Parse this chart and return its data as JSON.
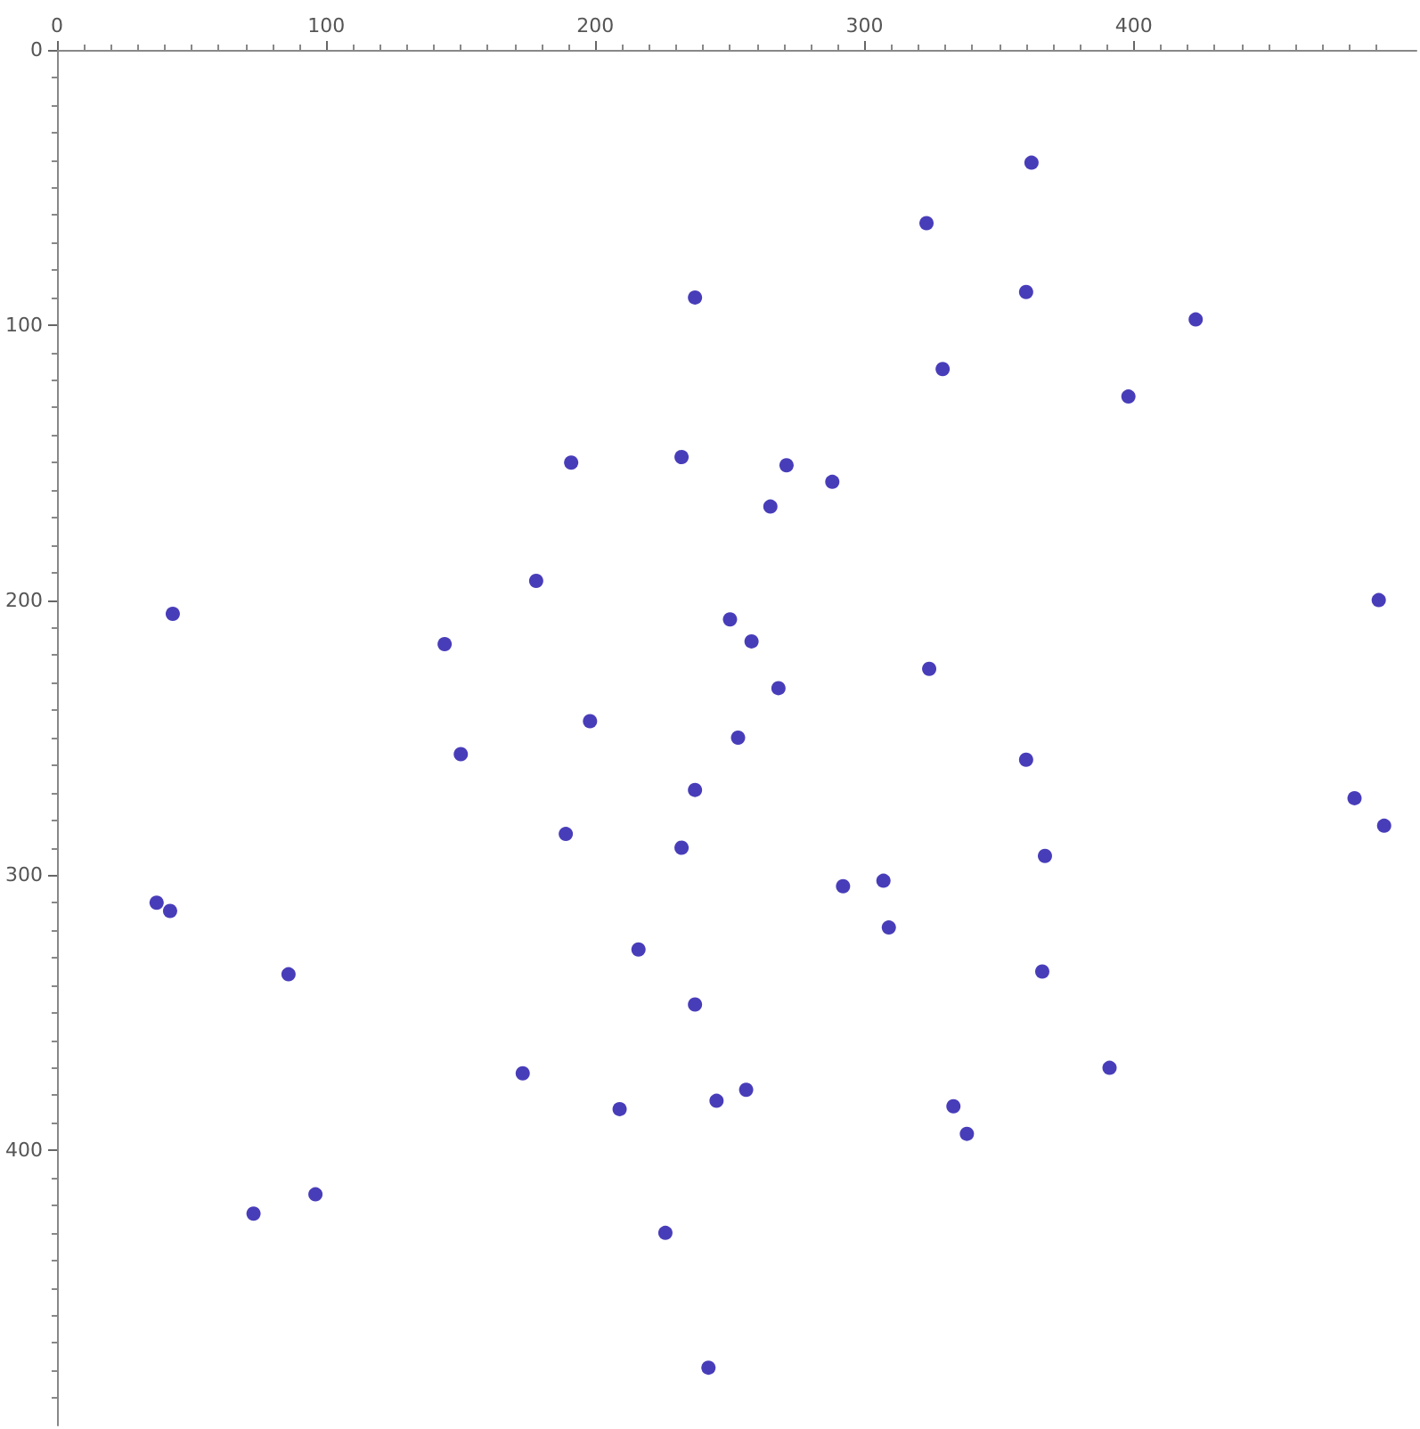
{
  "chart_data": {
    "type": "scatter",
    "color": "#1a0ca8",
    "marker": "circle",
    "grid": false,
    "x": [
      362,
      323,
      237,
      360,
      423,
      329,
      398,
      191,
      232,
      271,
      288,
      265,
      178,
      43,
      491,
      144,
      250,
      258,
      268,
      324,
      198,
      150,
      253,
      360,
      237,
      189,
      232,
      482,
      493,
      37,
      42,
      292,
      307,
      367,
      309,
      216,
      86,
      366,
      237,
      173,
      391,
      209,
      245,
      256,
      333,
      338,
      96,
      73,
      226,
      242
    ],
    "values": [
      41,
      63,
      90,
      88,
      98,
      116,
      126,
      150,
      148,
      151,
      157,
      166,
      193,
      205,
      200,
      216,
      207,
      215,
      232,
      225,
      244,
      256,
      250,
      258,
      269,
      285,
      290,
      272,
      282,
      310,
      313,
      304,
      302,
      293,
      319,
      327,
      336,
      335,
      347,
      372,
      370,
      385,
      382,
      378,
      384,
      394,
      416,
      423,
      430,
      479
    ],
    "xlim": [
      0,
      505
    ],
    "xticks": [
      0,
      100,
      200,
      300,
      400
    ],
    "ylim": [
      500,
      0
    ],
    "yticks": [
      0,
      100,
      200,
      300,
      400
    ]
  }
}
